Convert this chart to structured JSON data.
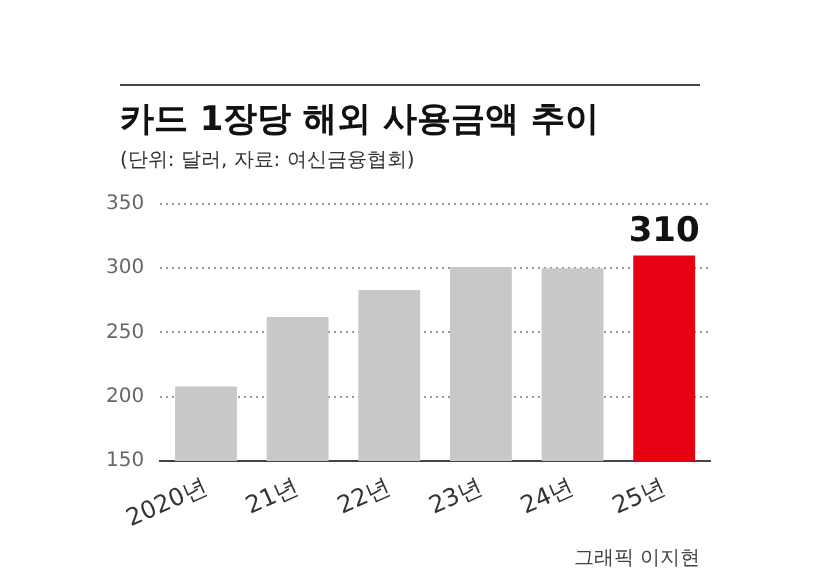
{
  "chart_data": {
    "type": "bar",
    "title": "카드 1장당 해외 사용금액 추이",
    "subtitle": "(단위: 달러, 자료: 여신금융협회)",
    "categories": [
      "2020년",
      "21년",
      "22년",
      "23년",
      "24년",
      "25년"
    ],
    "values": [
      208,
      262,
      283,
      301,
      300,
      310
    ],
    "colors": [
      "#c8c8c8",
      "#c8c8c8",
      "#c8c8c8",
      "#c8c8c8",
      "#c8c8c8",
      "#e60012"
    ],
    "value_labels": [
      null,
      null,
      null,
      null,
      null,
      "310"
    ],
    "ylim": [
      150,
      350
    ],
    "yticks": [
      150,
      200,
      250,
      300,
      350
    ],
    "grid": "y",
    "annotations": [
      "그래픽 이지현"
    ]
  }
}
